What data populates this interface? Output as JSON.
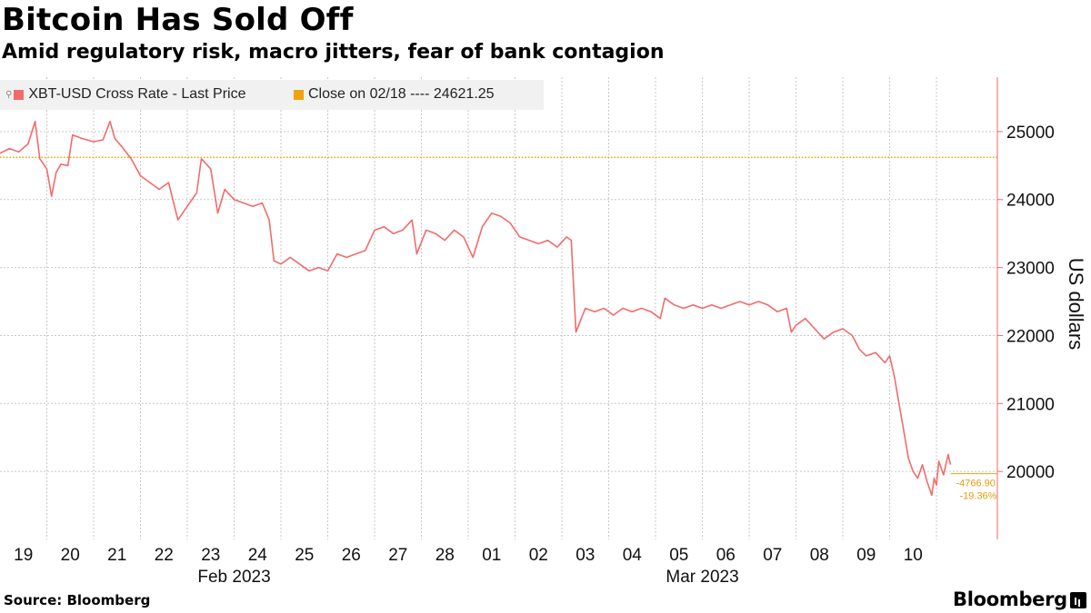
{
  "header": {
    "title": "Bitcoin Has Sold Off",
    "subtitle": "Amid regulatory risk, macro jitters, fear of bank contagion"
  },
  "legend": {
    "series_label": "XBT-USD Cross Rate - Last Price",
    "close_label": "Close on 02/18 ---- 24621.25"
  },
  "footer": {
    "source": "Source: Bloomberg",
    "brand": "Bloomberg"
  },
  "colors": {
    "series": "#f26b6b",
    "close_line": "#f0a30a",
    "annotation": "#e69b0c",
    "grid": "#c8c8c8"
  },
  "chart_data": {
    "type": "line",
    "title": "Bitcoin Has Sold Off",
    "subtitle": "Amid regulatory risk, macro jitters, fear of bank contagion",
    "ylabel": "US dollars",
    "ylim": [
      19000,
      25800
    ],
    "yticks": [
      20000,
      21000,
      22000,
      23000,
      24000,
      25000
    ],
    "xlim": [
      0,
      21.3
    ],
    "day_ticks": [
      "19",
      "20",
      "21",
      "22",
      "23",
      "24",
      "25",
      "26",
      "27",
      "28",
      "01",
      "02",
      "03",
      "04",
      "05",
      "06",
      "07",
      "08",
      "09",
      "10"
    ],
    "month_labels": [
      {
        "label": "Feb 2023",
        "x": 4.5
      },
      {
        "label": "Mar 2023",
        "x": 14.5
      }
    ],
    "grid": true,
    "legend_position": "top-left",
    "reference_line": {
      "name": "Close on 02/18",
      "value": 24621.25
    },
    "annotations": {
      "change": "-4766.90",
      "change_pct": "-19.36%"
    },
    "series": [
      {
        "name": "XBT-USD Cross Rate - Last Price",
        "points": [
          [
            0.0,
            24680
          ],
          [
            0.2,
            24750
          ],
          [
            0.4,
            24700
          ],
          [
            0.6,
            24820
          ],
          [
            0.75,
            25150
          ],
          [
            0.85,
            24600
          ],
          [
            1.0,
            24450
          ],
          [
            1.1,
            24050
          ],
          [
            1.2,
            24400
          ],
          [
            1.3,
            24520
          ],
          [
            1.45,
            24500
          ],
          [
            1.55,
            24950
          ],
          [
            1.75,
            24900
          ],
          [
            2.0,
            24850
          ],
          [
            2.2,
            24880
          ],
          [
            2.35,
            25150
          ],
          [
            2.45,
            24900
          ],
          [
            2.6,
            24780
          ],
          [
            2.8,
            24600
          ],
          [
            3.0,
            24350
          ],
          [
            3.2,
            24250
          ],
          [
            3.4,
            24150
          ],
          [
            3.6,
            24250
          ],
          [
            3.8,
            23700
          ],
          [
            4.0,
            23900
          ],
          [
            4.2,
            24100
          ],
          [
            4.3,
            24600
          ],
          [
            4.5,
            24450
          ],
          [
            4.65,
            23800
          ],
          [
            4.8,
            24150
          ],
          [
            5.0,
            24000
          ],
          [
            5.2,
            23950
          ],
          [
            5.4,
            23900
          ],
          [
            5.6,
            23950
          ],
          [
            5.75,
            23700
          ],
          [
            5.85,
            23100
          ],
          [
            6.0,
            23050
          ],
          [
            6.2,
            23150
          ],
          [
            6.4,
            23050
          ],
          [
            6.6,
            22950
          ],
          [
            6.8,
            23000
          ],
          [
            7.0,
            22950
          ],
          [
            7.2,
            23200
          ],
          [
            7.4,
            23150
          ],
          [
            7.6,
            23200
          ],
          [
            7.8,
            23250
          ],
          [
            8.0,
            23550
          ],
          [
            8.2,
            23600
          ],
          [
            8.4,
            23500
          ],
          [
            8.6,
            23550
          ],
          [
            8.8,
            23700
          ],
          [
            8.9,
            23200
          ],
          [
            9.1,
            23550
          ],
          [
            9.3,
            23500
          ],
          [
            9.5,
            23400
          ],
          [
            9.7,
            23550
          ],
          [
            9.9,
            23450
          ],
          [
            10.1,
            23150
          ],
          [
            10.3,
            23600
          ],
          [
            10.5,
            23800
          ],
          [
            10.7,
            23750
          ],
          [
            10.9,
            23650
          ],
          [
            11.1,
            23450
          ],
          [
            11.3,
            23400
          ],
          [
            11.5,
            23350
          ],
          [
            11.7,
            23400
          ],
          [
            11.9,
            23300
          ],
          [
            12.1,
            23450
          ],
          [
            12.2,
            23400
          ],
          [
            12.3,
            22050
          ],
          [
            12.5,
            22400
          ],
          [
            12.7,
            22350
          ],
          [
            12.9,
            22400
          ],
          [
            13.1,
            22300
          ],
          [
            13.3,
            22400
          ],
          [
            13.5,
            22350
          ],
          [
            13.7,
            22400
          ],
          [
            13.9,
            22350
          ],
          [
            14.1,
            22250
          ],
          [
            14.2,
            22550
          ],
          [
            14.4,
            22450
          ],
          [
            14.6,
            22400
          ],
          [
            14.8,
            22450
          ],
          [
            15.0,
            22400
          ],
          [
            15.2,
            22450
          ],
          [
            15.4,
            22400
          ],
          [
            15.6,
            22450
          ],
          [
            15.8,
            22500
          ],
          [
            16.0,
            22450
          ],
          [
            16.2,
            22500
          ],
          [
            16.4,
            22450
          ],
          [
            16.6,
            22350
          ],
          [
            16.8,
            22400
          ],
          [
            16.9,
            22050
          ],
          [
            17.0,
            22150
          ],
          [
            17.2,
            22250
          ],
          [
            17.4,
            22100
          ],
          [
            17.6,
            21950
          ],
          [
            17.8,
            22050
          ],
          [
            18.0,
            22100
          ],
          [
            18.2,
            22000
          ],
          [
            18.35,
            21800
          ],
          [
            18.5,
            21700
          ],
          [
            18.7,
            21750
          ],
          [
            18.9,
            21600
          ],
          [
            19.0,
            21700
          ],
          [
            19.1,
            21400
          ],
          [
            19.2,
            21000
          ],
          [
            19.3,
            20600
          ],
          [
            19.4,
            20200
          ],
          [
            19.5,
            20000
          ],
          [
            19.6,
            19900
          ],
          [
            19.7,
            20100
          ],
          [
            19.8,
            19850
          ],
          [
            19.9,
            19650
          ],
          [
            19.95,
            19900
          ],
          [
            20.0,
            19800
          ],
          [
            20.05,
            20150
          ],
          [
            20.15,
            19950
          ],
          [
            20.25,
            20250
          ],
          [
            20.3,
            20100
          ]
        ]
      }
    ]
  }
}
